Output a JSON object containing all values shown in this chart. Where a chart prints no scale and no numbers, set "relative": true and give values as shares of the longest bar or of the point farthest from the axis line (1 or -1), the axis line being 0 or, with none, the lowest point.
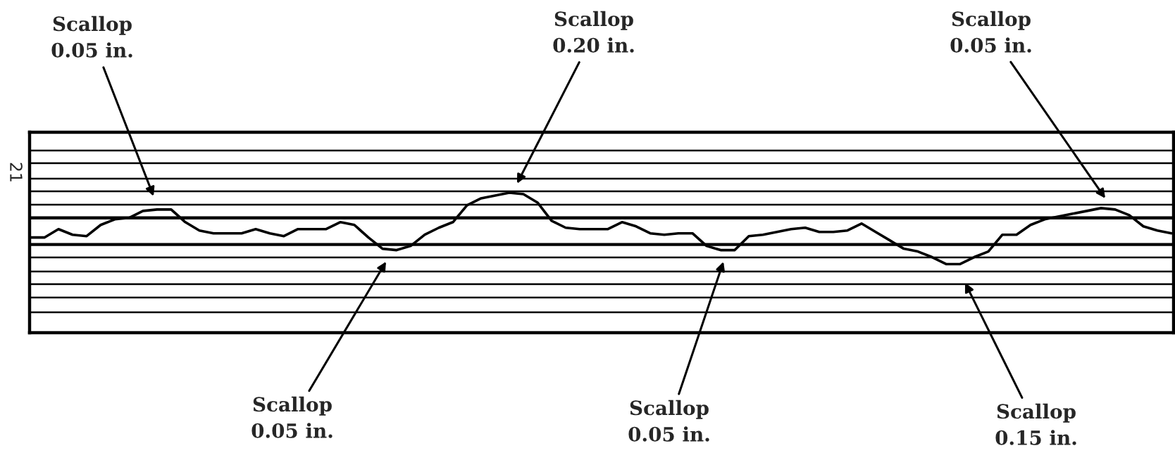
{
  "chart_data": {
    "type": "line",
    "relative": true,
    "grid": true,
    "ylabel": "21",
    "categories": [
      null,
      null,
      null,
      null,
      null,
      null,
      null,
      null,
      null,
      null,
      null,
      null,
      null,
      null,
      null,
      null,
      null,
      null,
      null,
      null,
      null,
      null,
      null,
      null,
      null,
      null,
      null,
      null,
      null,
      null,
      null,
      null,
      null,
      null,
      null,
      null,
      null,
      null,
      null,
      null,
      null,
      null,
      null,
      null,
      null,
      null,
      null,
      null,
      null,
      null,
      null,
      null,
      null,
      null,
      null,
      null,
      null,
      null,
      null,
      null,
      null,
      null,
      null,
      null,
      null,
      null,
      null,
      null,
      null,
      null,
      null,
      null,
      null,
      null,
      null,
      null,
      null,
      null,
      null,
      null,
      null,
      null
    ],
    "series": [
      {
        "color": "#000000",
        "values": [
          0.68,
          0.68,
          0.74,
          0.7,
          0.69,
          0.77,
          0.81,
          0.82,
          0.87,
          0.88,
          0.88,
          0.79,
          0.73,
          0.71,
          0.71,
          0.71,
          0.74,
          0.71,
          0.69,
          0.74,
          0.74,
          0.74,
          0.79,
          0.77,
          0.68,
          0.6,
          0.59,
          0.62,
          0.7,
          0.75,
          0.79,
          0.91,
          0.96,
          0.98,
          1,
          0.99,
          0.93,
          0.8,
          0.75,
          0.74,
          0.74,
          0.74,
          0.79,
          0.76,
          0.71,
          0.7,
          0.71,
          0.71,
          0.62,
          0.59,
          0.59,
          0.69,
          0.7,
          0.72,
          0.74,
          0.75,
          0.72,
          0.72,
          0.73,
          0.78,
          0.72,
          0.66,
          0.6,
          0.58,
          0.54,
          0.49,
          0.49,
          0.54,
          0.58,
          0.7,
          0.7,
          0.77,
          0.81,
          0.83,
          0.85,
          0.87,
          0.89,
          0.88,
          0.84,
          0.76,
          0.73,
          0.71
        ]
      }
    ],
    "ref_lines": [
      {
        "axis": "y",
        "value": 0.82,
        "color": "#000000"
      },
      {
        "axis": "y",
        "value": 0.63,
        "color": "#000000"
      }
    ],
    "annotations": [
      "Scallop\n0.05 in.",
      "Scallop\n0.20 in.",
      "Scallop\n0.05 in.",
      "Scallop\n0.05 in.",
      "Scallop\n0.05 in.",
      "Scallop\n0.15 in."
    ]
  }
}
